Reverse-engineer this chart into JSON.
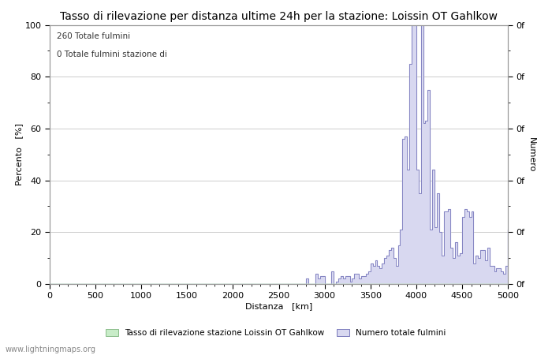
{
  "title": "Tasso di rilevazione per distanza ultime 24h per la stazione: Loissin OT Gahlkow",
  "xlabel": "Distanza   [km]",
  "ylabel_left": "Percento   [%]",
  "ylabel_right": "Numero",
  "annotation_line1": "260 Totale fulmini",
  "annotation_line2": "0 Totale fulmini stazione di",
  "legend_label1": "Tasso di rilevazione stazione Loissin OT Gahlkow",
  "legend_label2": "Numero totale fulmini",
  "watermark": "www.lightningmaps.org",
  "xlim": [
    0,
    5000
  ],
  "ylim": [
    0,
    100
  ],
  "xticks": [
    0,
    500,
    1000,
    1500,
    2000,
    2500,
    3000,
    3500,
    4000,
    4500,
    5000
  ],
  "yticks_left": [
    0,
    20,
    40,
    60,
    80,
    100
  ],
  "fill_color_detection": "#c8ecc8",
  "fill_color_total": "#d8d8f0",
  "line_color": "#7777bb",
  "background_color": "#ffffff",
  "grid_color": "#cccccc",
  "title_fontsize": 10,
  "axis_fontsize": 8,
  "tick_fontsize": 8,
  "x_data": [
    0,
    25,
    50,
    75,
    100,
    125,
    150,
    175,
    200,
    225,
    250,
    275,
    300,
    325,
    350,
    375,
    400,
    425,
    450,
    475,
    500,
    525,
    550,
    575,
    600,
    625,
    650,
    675,
    700,
    725,
    750,
    775,
    800,
    825,
    850,
    875,
    900,
    925,
    950,
    975,
    1000,
    1025,
    1050,
    1075,
    1100,
    1125,
    1150,
    1175,
    1200,
    1225,
    1250,
    1275,
    1300,
    1325,
    1350,
    1375,
    1400,
    1425,
    1450,
    1475,
    1500,
    1525,
    1550,
    1575,
    1600,
    1625,
    1650,
    1675,
    1700,
    1725,
    1750,
    1775,
    1800,
    1825,
    1850,
    1875,
    1900,
    1925,
    1950,
    1975,
    2000,
    2025,
    2050,
    2075,
    2100,
    2125,
    2150,
    2175,
    2200,
    2225,
    2250,
    2275,
    2300,
    2325,
    2350,
    2375,
    2400,
    2425,
    2450,
    2475,
    2500,
    2525,
    2550,
    2575,
    2600,
    2625,
    2650,
    2675,
    2700,
    2725,
    2750,
    2775,
    2800,
    2825,
    2850,
    2875,
    2900,
    2925,
    2950,
    2975,
    3000,
    3025,
    3050,
    3075,
    3100,
    3125,
    3150,
    3175,
    3200,
    3225,
    3250,
    3275,
    3300,
    3325,
    3350,
    3375,
    3400,
    3425,
    3450,
    3475,
    3500,
    3525,
    3550,
    3575,
    3600,
    3625,
    3650,
    3675,
    3700,
    3725,
    3750,
    3775,
    3800,
    3825,
    3850,
    3875,
    3900,
    3925,
    3950,
    3975,
    4000,
    4025,
    4050,
    4075,
    4100,
    4125,
    4150,
    4175,
    4200,
    4225,
    4250,
    4275,
    4300,
    4325,
    4350,
    4375,
    4400,
    4425,
    4450,
    4475,
    4500,
    4525,
    4550,
    4575,
    4600,
    4625,
    4650,
    4675,
    4700,
    4725,
    4750,
    4775,
    4800,
    4825,
    4850,
    4875,
    4900,
    4925,
    4950,
    4975,
    5000
  ],
  "y_detection": [
    0,
    0,
    0,
    0,
    0,
    0,
    0,
    0,
    0,
    0,
    0,
    0,
    0,
    0,
    0,
    0,
    0,
    0,
    0,
    0,
    0,
    0,
    0,
    0,
    0,
    0,
    0,
    0,
    0,
    0,
    0,
    0,
    0,
    0,
    0,
    0,
    0,
    0,
    0,
    0,
    0,
    0,
    0,
    0,
    0,
    0,
    0,
    0,
    0,
    0,
    0,
    0,
    0,
    0,
    0,
    0,
    0,
    0,
    0,
    0,
    0,
    0,
    0,
    0,
    0,
    0,
    0,
    0,
    0,
    0,
    0,
    0,
    0,
    0,
    0,
    0,
    0,
    0,
    0,
    0,
    0,
    0,
    0,
    0,
    0,
    0,
    0,
    0,
    0,
    0,
    0,
    0,
    0,
    0,
    0,
    0,
    0,
    0,
    0,
    0,
    0,
    0,
    0,
    0,
    0,
    0,
    0,
    0,
    0,
    0,
    0,
    0,
    0,
    0,
    0,
    0,
    0,
    0,
    0,
    0,
    0,
    0,
    0,
    0,
    0,
    0,
    0,
    0,
    0,
    0,
    0,
    0,
    0,
    0,
    0,
    0,
    0,
    0,
    0,
    0,
    0,
    0,
    0,
    0,
    0,
    0,
    0,
    0,
    0,
    0,
    0,
    0,
    0,
    0,
    0,
    0,
    0,
    0,
    0,
    0,
    0,
    0,
    0,
    0,
    0,
    0,
    0,
    0,
    0,
    0,
    0,
    0,
    0,
    0,
    0,
    0,
    0,
    0,
    0,
    0,
    0,
    0,
    0,
    0,
    0,
    0,
    0,
    0,
    0,
    0,
    0,
    0,
    0,
    0,
    0,
    0,
    0,
    0,
    0,
    0,
    0
  ],
  "y_total": [
    0,
    0,
    0,
    0,
    0,
    0,
    0,
    0,
    0,
    0,
    0,
    0,
    0,
    0,
    0,
    0,
    0,
    0,
    0,
    0,
    0,
    0,
    0,
    0,
    0,
    0,
    0,
    0,
    0,
    0,
    0,
    0,
    0,
    0,
    0,
    0,
    0,
    0,
    0,
    0,
    0,
    0,
    0,
    0,
    0,
    0,
    0,
    0,
    0,
    0,
    0,
    0,
    0,
    0,
    0,
    0,
    0,
    0,
    0,
    0,
    0,
    0,
    0,
    0,
    0,
    0,
    0,
    0,
    0,
    0,
    0,
    0,
    0,
    0,
    0,
    0,
    0,
    0,
    0,
    0,
    0,
    0,
    0,
    0,
    0,
    0,
    0,
    0,
    0,
    0,
    0,
    0,
    0,
    0,
    0,
    0,
    0,
    0,
    0,
    0,
    0,
    0,
    0,
    0,
    0,
    0,
    0,
    0,
    0,
    0,
    0,
    0,
    2,
    0,
    0,
    0,
    4,
    2,
    3,
    3,
    0,
    0,
    0,
    5,
    0,
    1,
    2,
    3,
    2,
    3,
    3,
    1,
    2,
    4,
    4,
    2,
    3,
    3,
    4,
    5,
    8,
    7,
    9,
    7,
    6,
    8,
    10,
    11,
    13,
    14,
    10,
    7,
    15,
    21,
    56,
    57,
    44,
    85,
    100,
    100,
    44,
    35,
    100,
    62,
    63,
    75,
    21,
    44,
    22,
    35,
    20,
    11,
    28,
    28,
    29,
    14,
    10,
    16,
    11,
    12,
    26,
    29,
    28,
    26,
    28,
    8,
    11,
    10,
    13,
    13,
    9,
    14,
    7,
    7,
    5,
    6,
    6,
    5,
    4,
    7,
    21
  ]
}
